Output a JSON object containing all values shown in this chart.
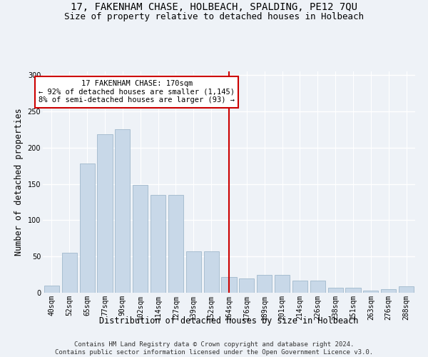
{
  "title": "17, FAKENHAM CHASE, HOLBEACH, SPALDING, PE12 7QU",
  "subtitle": "Size of property relative to detached houses in Holbeach",
  "xlabel": "Distribution of detached houses by size in Holbeach",
  "ylabel": "Number of detached properties",
  "categories": [
    "40sqm",
    "52sqm",
    "65sqm",
    "77sqm",
    "90sqm",
    "102sqm",
    "114sqm",
    "127sqm",
    "139sqm",
    "152sqm",
    "164sqm",
    "176sqm",
    "189sqm",
    "201sqm",
    "214sqm",
    "226sqm",
    "238sqm",
    "251sqm",
    "263sqm",
    "276sqm",
    "288sqm"
  ],
  "values": [
    10,
    55,
    178,
    218,
    225,
    149,
    135,
    135,
    57,
    57,
    22,
    20,
    25,
    25,
    17,
    17,
    7,
    7,
    3,
    5,
    9
  ],
  "bar_color": "#c8d8e8",
  "bar_edge_color": "#a0b8cc",
  "vline_color": "#cc0000",
  "vline_x_index": 10.0,
  "annotation_text": "17 FAKENHAM CHASE: 170sqm\n← 92% of detached houses are smaller (1,145)\n8% of semi-detached houses are larger (93) →",
  "annotation_box_color": "#ffffff",
  "annotation_box_edge": "#cc0000",
  "ylim": [
    0,
    305
  ],
  "yticks": [
    0,
    50,
    100,
    150,
    200,
    250,
    300
  ],
  "footer_line1": "Contains HM Land Registry data © Crown copyright and database right 2024.",
  "footer_line2": "Contains public sector information licensed under the Open Government Licence v3.0.",
  "bg_color": "#eef2f7",
  "grid_color": "#ffffff",
  "title_fontsize": 10,
  "subtitle_fontsize": 9,
  "label_fontsize": 8.5,
  "tick_fontsize": 7,
  "footer_fontsize": 6.5,
  "annotation_fontsize": 7.5
}
